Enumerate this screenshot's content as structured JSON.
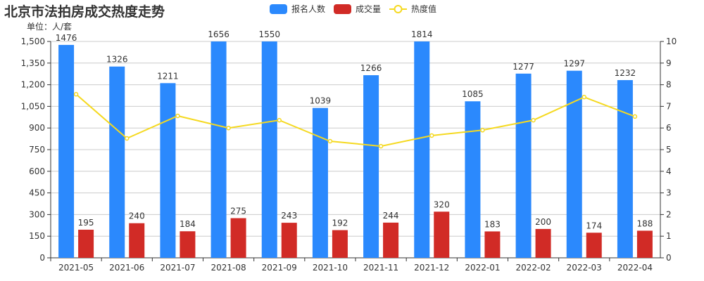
{
  "header": {
    "title": "北京市法拍房成交热度走势",
    "unit_label": "单位：人/套"
  },
  "legend": [
    {
      "label": "报名人数",
      "type": "bar",
      "color": "#2b89fd"
    },
    {
      "label": "成交量",
      "type": "bar",
      "color": "#d12b26"
    },
    {
      "label": "热度值",
      "type": "line",
      "color": "#f5d920"
    }
  ],
  "colors": {
    "registrations": "#2b89fd",
    "transactions": "#d12b26",
    "heat": "#f5d920",
    "axis": "#333333",
    "grid": "#cccccc"
  },
  "chart_data": {
    "type": "bar",
    "title": "北京市法拍房成交热度走势",
    "subtitle": "单位：人/套",
    "categories": [
      "2021-05",
      "2021-06",
      "2021-07",
      "2021-08",
      "2021-09",
      "2021-10",
      "2021-11",
      "2021-12",
      "2022-01",
      "2022-02",
      "2022-03",
      "2022-04"
    ],
    "series": [
      {
        "name": "报名人数",
        "type": "bar",
        "axis": "left",
        "values": [
          1476,
          1326,
          1211,
          1656,
          1550,
          1039,
          1266,
          1814,
          1085,
          1277,
          1297,
          1232
        ]
      },
      {
        "name": "成交量",
        "type": "bar",
        "axis": "left",
        "values": [
          195,
          240,
          184,
          275,
          243,
          192,
          244,
          320,
          183,
          200,
          174,
          188
        ]
      },
      {
        "name": "热度值",
        "type": "line",
        "axis": "right",
        "values": [
          7.56,
          5.52,
          6.56,
          6.0,
          6.36,
          5.39,
          5.16,
          5.65,
          5.9,
          6.36,
          7.43,
          6.53
        ]
      }
    ],
    "y_left": {
      "ticks": [
        "0",
        "150",
        "300",
        "450",
        "600",
        "750",
        "900",
        "1,050",
        "1,200",
        "1,350",
        "1,500"
      ],
      "ylim": [
        0,
        1500
      ]
    },
    "y_right": {
      "ticks": [
        "0",
        "1",
        "2",
        "3",
        "4",
        "5",
        "6",
        "7",
        "8",
        "9",
        "10"
      ],
      "ylim": [
        0,
        10
      ]
    },
    "xlabel": "",
    "ylabel": "单位：人/套",
    "grid": true,
    "legend_position": "top-center"
  }
}
